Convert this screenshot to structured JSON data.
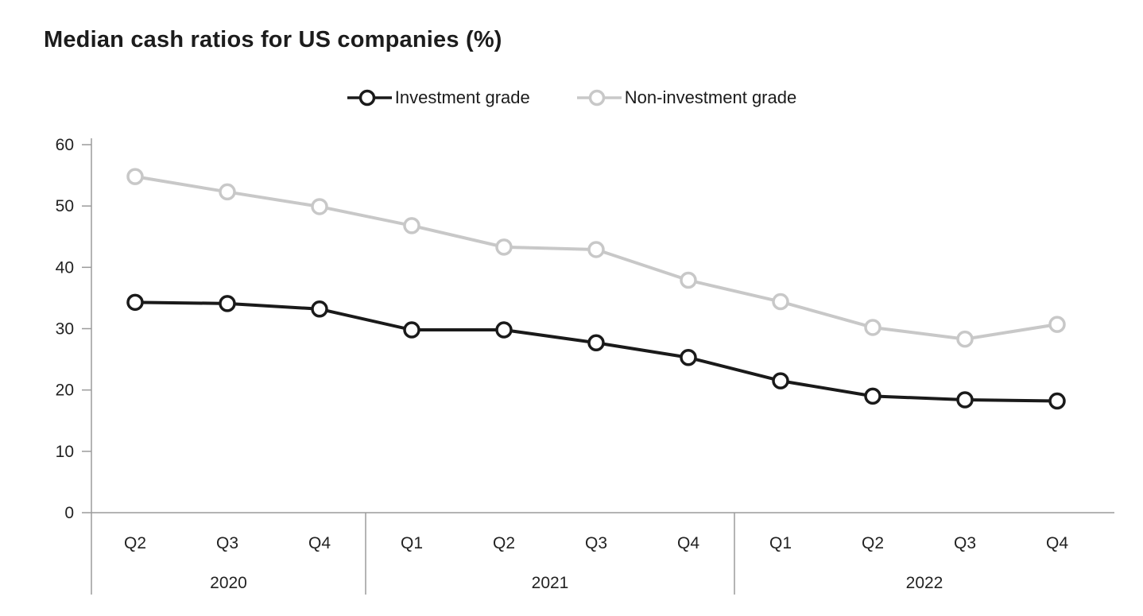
{
  "chart": {
    "title": "Median cash ratios for US companies (%)",
    "legend": [
      {
        "label": "Investment grade",
        "color": "#1a1a1a"
      },
      {
        "label": "Non-investment grade",
        "color": "#c8c8c8"
      }
    ]
  },
  "chart_data": {
    "type": "line",
    "title": "Median cash ratios for US companies (%)",
    "xlabel": "",
    "ylabel": "",
    "x_labels": [
      "Q2",
      "Q3",
      "Q4",
      "Q1",
      "Q2",
      "Q3",
      "Q4",
      "Q1",
      "Q2",
      "Q3",
      "Q4"
    ],
    "year_groups": [
      {
        "label": "2020",
        "count": 3
      },
      {
        "label": "2021",
        "count": 4
      },
      {
        "label": "2022",
        "count": 4
      }
    ],
    "series": [
      {
        "name": "Investment grade",
        "color": "#1a1a1a",
        "values": [
          34.3,
          34.1,
          33.2,
          29.8,
          29.8,
          27.7,
          25.3,
          21.5,
          19.0,
          18.4,
          18.2
        ]
      },
      {
        "name": "Non-investment grade",
        "color": "#c8c8c8",
        "values": [
          54.8,
          52.3,
          49.9,
          46.8,
          43.3,
          42.9,
          37.9,
          34.4,
          30.2,
          28.3,
          30.7
        ]
      }
    ],
    "ylim": [
      0,
      60
    ],
    "ytick_step": 10,
    "grid": false,
    "legend_position": "top",
    "axis_color": "#9b9b9b",
    "marker": {
      "shape": "circle",
      "fill": "#ffffff"
    }
  }
}
